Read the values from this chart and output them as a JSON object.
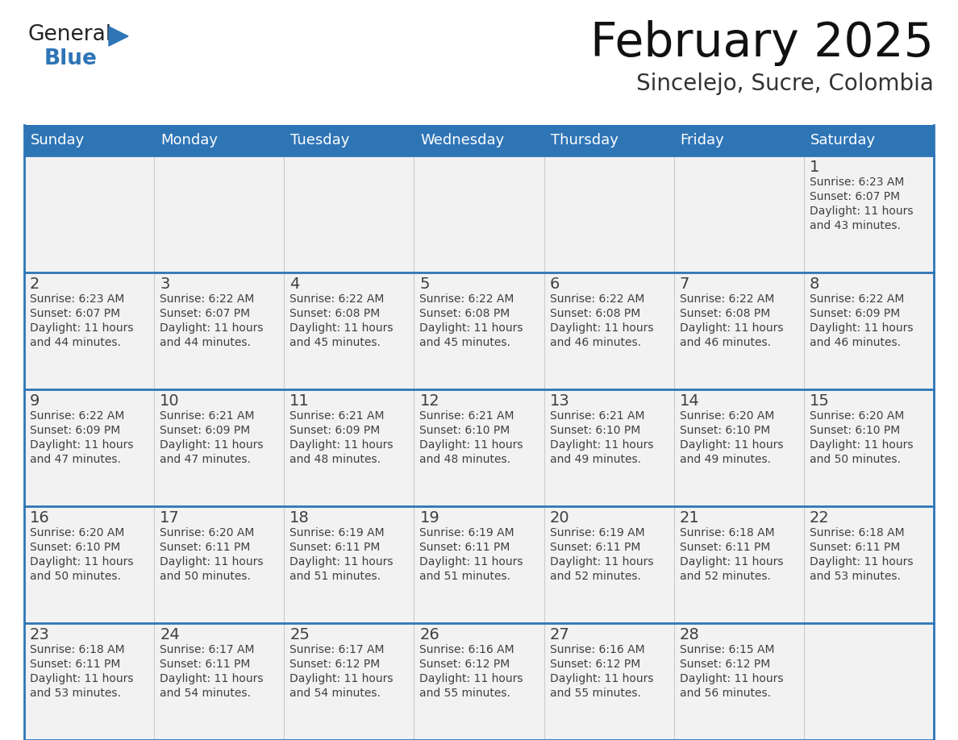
{
  "title": "February 2025",
  "subtitle": "Sincelejo, Sucre, Colombia",
  "header_color": "#2E75B6",
  "header_text_color": "#FFFFFF",
  "day_names": [
    "Sunday",
    "Monday",
    "Tuesday",
    "Wednesday",
    "Thursday",
    "Friday",
    "Saturday"
  ],
  "background_color": "#FFFFFF",
  "cell_bg_white": "#FFFFFF",
  "cell_bg_gray": "#F2F2F2",
  "cell_border_top_color": "#2E75B6",
  "number_color": "#404040",
  "text_color": "#404040",
  "logo_general_color": "#222222",
  "logo_blue_color": "#2E75B6",
  "title_color": "#111111",
  "subtitle_color": "#333333",
  "calendar_data": [
    [
      null,
      null,
      null,
      null,
      null,
      null,
      {
        "day": 1,
        "sunrise": "6:23 AM",
        "sunset": "6:07 PM",
        "daylight": "11 hours and 43 minutes."
      }
    ],
    [
      {
        "day": 2,
        "sunrise": "6:23 AM",
        "sunset": "6:07 PM",
        "daylight": "11 hours and 44 minutes."
      },
      {
        "day": 3,
        "sunrise": "6:22 AM",
        "sunset": "6:07 PM",
        "daylight": "11 hours and 44 minutes."
      },
      {
        "day": 4,
        "sunrise": "6:22 AM",
        "sunset": "6:08 PM",
        "daylight": "11 hours and 45 minutes."
      },
      {
        "day": 5,
        "sunrise": "6:22 AM",
        "sunset": "6:08 PM",
        "daylight": "11 hours and 45 minutes."
      },
      {
        "day": 6,
        "sunrise": "6:22 AM",
        "sunset": "6:08 PM",
        "daylight": "11 hours and 46 minutes."
      },
      {
        "day": 7,
        "sunrise": "6:22 AM",
        "sunset": "6:08 PM",
        "daylight": "11 hours and 46 minutes."
      },
      {
        "day": 8,
        "sunrise": "6:22 AM",
        "sunset": "6:09 PM",
        "daylight": "11 hours and 46 minutes."
      }
    ],
    [
      {
        "day": 9,
        "sunrise": "6:22 AM",
        "sunset": "6:09 PM",
        "daylight": "11 hours and 47 minutes."
      },
      {
        "day": 10,
        "sunrise": "6:21 AM",
        "sunset": "6:09 PM",
        "daylight": "11 hours and 47 minutes."
      },
      {
        "day": 11,
        "sunrise": "6:21 AM",
        "sunset": "6:09 PM",
        "daylight": "11 hours and 48 minutes."
      },
      {
        "day": 12,
        "sunrise": "6:21 AM",
        "sunset": "6:10 PM",
        "daylight": "11 hours and 48 minutes."
      },
      {
        "day": 13,
        "sunrise": "6:21 AM",
        "sunset": "6:10 PM",
        "daylight": "11 hours and 49 minutes."
      },
      {
        "day": 14,
        "sunrise": "6:20 AM",
        "sunset": "6:10 PM",
        "daylight": "11 hours and 49 minutes."
      },
      {
        "day": 15,
        "sunrise": "6:20 AM",
        "sunset": "6:10 PM",
        "daylight": "11 hours and 50 minutes."
      }
    ],
    [
      {
        "day": 16,
        "sunrise": "6:20 AM",
        "sunset": "6:10 PM",
        "daylight": "11 hours and 50 minutes."
      },
      {
        "day": 17,
        "sunrise": "6:20 AM",
        "sunset": "6:11 PM",
        "daylight": "11 hours and 50 minutes."
      },
      {
        "day": 18,
        "sunrise": "6:19 AM",
        "sunset": "6:11 PM",
        "daylight": "11 hours and 51 minutes."
      },
      {
        "day": 19,
        "sunrise": "6:19 AM",
        "sunset": "6:11 PM",
        "daylight": "11 hours and 51 minutes."
      },
      {
        "day": 20,
        "sunrise": "6:19 AM",
        "sunset": "6:11 PM",
        "daylight": "11 hours and 52 minutes."
      },
      {
        "day": 21,
        "sunrise": "6:18 AM",
        "sunset": "6:11 PM",
        "daylight": "11 hours and 52 minutes."
      },
      {
        "day": 22,
        "sunrise": "6:18 AM",
        "sunset": "6:11 PM",
        "daylight": "11 hours and 53 minutes."
      }
    ],
    [
      {
        "day": 23,
        "sunrise": "6:18 AM",
        "sunset": "6:11 PM",
        "daylight": "11 hours and 53 minutes."
      },
      {
        "day": 24,
        "sunrise": "6:17 AM",
        "sunset": "6:11 PM",
        "daylight": "11 hours and 54 minutes."
      },
      {
        "day": 25,
        "sunrise": "6:17 AM",
        "sunset": "6:12 PM",
        "daylight": "11 hours and 54 minutes."
      },
      {
        "day": 26,
        "sunrise": "6:16 AM",
        "sunset": "6:12 PM",
        "daylight": "11 hours and 55 minutes."
      },
      {
        "day": 27,
        "sunrise": "6:16 AM",
        "sunset": "6:12 PM",
        "daylight": "11 hours and 55 minutes."
      },
      {
        "day": 28,
        "sunrise": "6:15 AM",
        "sunset": "6:12 PM",
        "daylight": "11 hours and 56 minutes."
      },
      null
    ]
  ]
}
